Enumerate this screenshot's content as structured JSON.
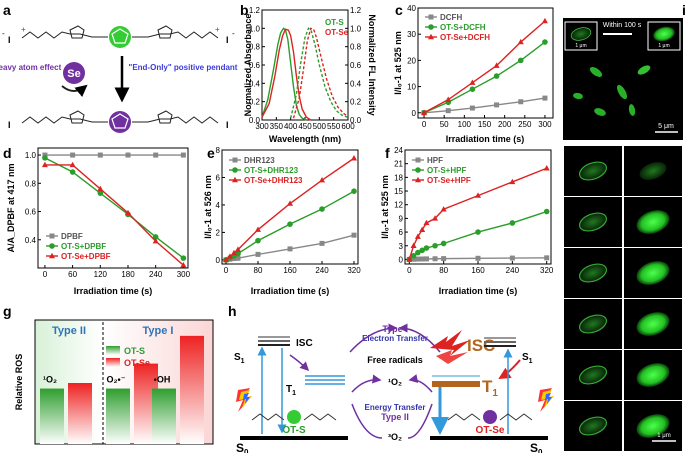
{
  "figure": {
    "panel_letters": [
      "a",
      "b",
      "c",
      "d",
      "e",
      "f",
      "g",
      "h",
      "i"
    ]
  },
  "panel_a": {
    "heavy_atom": "Heavy atom effect",
    "element": "Se",
    "end_only": "\"End-Only\" positive pendant",
    "plus": "+",
    "iodide": "I",
    "minus": "-",
    "colors": {
      "thiophene": "#33cc33",
      "selenophene": "#7030a0",
      "arrow_left": "#3b3bd9",
      "arrow_right": "#3b3bd9"
    }
  },
  "chart_data": [
    {
      "id": "b",
      "type": "line",
      "xlabel": "Wavelength (nm)",
      "ylabel": "Normalized Absorbance",
      "y2label": "Normalized FL Intensity",
      "xlim": [
        300,
        600
      ],
      "ylim": [
        0,
        1.2
      ],
      "xticks": [
        300,
        350,
        400,
        450,
        500,
        550,
        600
      ],
      "yticks": [
        0,
        0.2,
        0.4,
        0.6,
        0.8,
        1.0,
        1.2
      ],
      "ytick_labels": [
        "0.0",
        "0.2",
        "0.4",
        "0.6",
        "0.8",
        "1.0",
        "1.2"
      ],
      "legend": [
        "OT-S",
        "OT-Se"
      ],
      "series": [
        {
          "name": "OT-S abs",
          "color": "#2a9d2a",
          "dash": false,
          "x": [
            300,
            320,
            340,
            355,
            365,
            375,
            382,
            390,
            400,
            410,
            420,
            430,
            440,
            455
          ],
          "y": [
            0.03,
            0.22,
            0.55,
            0.82,
            0.95,
            1.0,
            0.98,
            0.88,
            0.62,
            0.36,
            0.16,
            0.06,
            0.02,
            0.0
          ]
        },
        {
          "name": "OT-Se abs",
          "color": "#dd2222",
          "dash": false,
          "x": [
            300,
            325,
            345,
            360,
            372,
            382,
            392,
            400,
            410,
            420,
            430,
            440,
            455,
            470
          ],
          "y": [
            0.03,
            0.18,
            0.48,
            0.76,
            0.92,
            0.99,
            0.98,
            0.92,
            0.74,
            0.48,
            0.26,
            0.12,
            0.03,
            0.0
          ]
        },
        {
          "name": "OT-S FL",
          "color": "#2a9d2a",
          "dash": true,
          "x": [
            400,
            420,
            435,
            450,
            462,
            472,
            485,
            500,
            520,
            540,
            560,
            580,
            600
          ],
          "y": [
            0.02,
            0.28,
            0.62,
            0.9,
            1.0,
            0.97,
            0.82,
            0.6,
            0.36,
            0.2,
            0.1,
            0.05,
            0.03
          ]
        },
        {
          "name": "OT-Se FL",
          "color": "#dd2222",
          "dash": true,
          "x": [
            410,
            430,
            445,
            458,
            470,
            480,
            490,
            505,
            525,
            545,
            565,
            585,
            600
          ],
          "y": [
            0.02,
            0.24,
            0.56,
            0.86,
            1.0,
            0.99,
            0.9,
            0.7,
            0.45,
            0.26,
            0.14,
            0.07,
            0.04
          ]
        }
      ]
    },
    {
      "id": "c",
      "type": "line",
      "xlabel": "Irradiation time (s)",
      "ylabel": "I/I₀-1 at 525 nm",
      "xlim": [
        -15,
        320
      ],
      "ylim": [
        -2,
        40
      ],
      "xticks": [
        0,
        50,
        100,
        150,
        200,
        250,
        300
      ],
      "yticks": [
        0,
        10,
        20,
        30,
        40
      ],
      "legend_placement": "top-left",
      "series": [
        {
          "name": "DCFH",
          "color": "#888888",
          "marker": "square",
          "x": [
            0,
            60,
            120,
            180,
            240,
            300
          ],
          "y": [
            0,
            0.8,
            1.8,
            3.0,
            4.2,
            5.6
          ]
        },
        {
          "name": "OT-S+DCFH",
          "color": "#2a9d2a",
          "marker": "circle",
          "x": [
            0,
            60,
            120,
            180,
            240,
            300
          ],
          "y": [
            0,
            4.0,
            9.0,
            14.0,
            20.0,
            27.0
          ]
        },
        {
          "name": "OT-Se+DCFH",
          "color": "#dd2222",
          "marker": "triangle",
          "x": [
            0,
            60,
            120,
            180,
            240,
            300
          ],
          "y": [
            0,
            5.0,
            11.5,
            18.0,
            27.0,
            35.0
          ]
        }
      ]
    },
    {
      "id": "d",
      "type": "line",
      "xlabel": "Irradiation time (s)",
      "ylabel": "A/A_DPBF at 417 nm",
      "xlim": [
        -15,
        310
      ],
      "ylim": [
        0.2,
        1.05
      ],
      "xticks": [
        0,
        60,
        120,
        180,
        240,
        300
      ],
      "yticks": [
        0.4,
        0.6,
        0.8,
        1.0
      ],
      "ytick_labels": [
        "0.4",
        "0.6",
        "0.8",
        "1.0"
      ],
      "legend_placement": "bottom-left",
      "series": [
        {
          "name": "DPBF",
          "color": "#888888",
          "marker": "square",
          "x": [
            0,
            60,
            120,
            180,
            240,
            300
          ],
          "y": [
            1.0,
            1.0,
            1.0,
            1.0,
            1.0,
            1.0
          ]
        },
        {
          "name": "OT-S+DPBF",
          "color": "#2a9d2a",
          "marker": "circle",
          "x": [
            0,
            60,
            120,
            180,
            240,
            300
          ],
          "y": [
            0.98,
            0.88,
            0.73,
            0.58,
            0.42,
            0.27
          ]
        },
        {
          "name": "OT-Se+DPBF",
          "color": "#dd2222",
          "marker": "triangle",
          "x": [
            0,
            60,
            120,
            180,
            240,
            300
          ],
          "y": [
            0.93,
            0.93,
            0.76,
            0.59,
            0.39,
            0.22
          ]
        }
      ]
    },
    {
      "id": "e",
      "type": "line",
      "xlabel": "Irradiation time (s)",
      "ylabel": "I/I₀-1 at 526 nm",
      "xlim": [
        -10,
        330
      ],
      "ylim": [
        -0.3,
        8
      ],
      "xticks": [
        0,
        80,
        160,
        240,
        320
      ],
      "yticks": [
        0,
        2,
        4,
        6,
        8
      ],
      "legend_placement": "top-left",
      "series": [
        {
          "name": "DHR123",
          "color": "#888888",
          "marker": "square",
          "x": [
            0,
            10,
            20,
            30,
            80,
            160,
            240,
            320
          ],
          "y": [
            0,
            0.05,
            0.1,
            0.12,
            0.4,
            0.8,
            1.2,
            1.8
          ]
        },
        {
          "name": "OT-S+DHR123",
          "color": "#2a9d2a",
          "marker": "circle",
          "x": [
            0,
            10,
            20,
            30,
            80,
            160,
            240,
            320
          ],
          "y": [
            0,
            0.15,
            0.3,
            0.45,
            1.4,
            2.6,
            3.7,
            5.0
          ]
        },
        {
          "name": "OT-Se+DHR123",
          "color": "#dd2222",
          "marker": "triangle",
          "x": [
            0,
            10,
            20,
            30,
            80,
            160,
            240,
            320
          ],
          "y": [
            0,
            0.25,
            0.5,
            0.75,
            2.2,
            4.1,
            5.8,
            7.4
          ]
        }
      ]
    },
    {
      "id": "f",
      "type": "line",
      "xlabel": "Irradiation time (s)",
      "ylabel": "I/I₀-1 at 525 nm",
      "xlim": [
        -10,
        330
      ],
      "ylim": [
        -1,
        24
      ],
      "xticks": [
        0,
        80,
        160,
        240,
        320
      ],
      "yticks": [
        0,
        3,
        6,
        9,
        12,
        15,
        18,
        21,
        24
      ],
      "legend_placement": "top-left",
      "series": [
        {
          "name": "HPF",
          "color": "#888888",
          "marker": "square",
          "x": [
            0,
            10,
            20,
            30,
            40,
            60,
            80,
            160,
            240,
            320
          ],
          "y": [
            0,
            0.05,
            0.08,
            0.1,
            0.12,
            0.15,
            0.18,
            0.25,
            0.3,
            0.35
          ]
        },
        {
          "name": "OT-S+HPF",
          "color": "#2a9d2a",
          "marker": "circle",
          "x": [
            0,
            10,
            20,
            30,
            40,
            60,
            80,
            160,
            240,
            320
          ],
          "y": [
            0,
            0.8,
            1.5,
            2.0,
            2.5,
            3.0,
            3.5,
            6.0,
            8.0,
            10.5
          ]
        },
        {
          "name": "OT-Se+HPF",
          "color": "#dd2222",
          "marker": "triangle",
          "x": [
            0,
            10,
            20,
            30,
            40,
            60,
            80,
            160,
            240,
            320
          ],
          "y": [
            0,
            3.0,
            5.0,
            6.5,
            8.0,
            9.0,
            11.0,
            14.0,
            17.0,
            20.0
          ]
        }
      ]
    },
    {
      "id": "g",
      "type": "bar",
      "ylabel": "Relative ROS",
      "categories": [
        "¹O₂",
        "O₂•⁻",
        "•OH"
      ],
      "group_labels": [
        "Type II",
        "Type I"
      ],
      "ylim": [
        0,
        2.2
      ],
      "series": [
        {
          "name": "OT-S",
          "color": "#2a9d2a",
          "values": [
            1.0,
            1.0,
            1.0
          ]
        },
        {
          "name": "OT-Se",
          "color": "#ee2222",
          "values": [
            1.1,
            1.45,
            1.95
          ]
        }
      ]
    }
  ],
  "panel_h": {
    "isc_left": "ISC",
    "isc_right": "ISC",
    "s1": "S",
    "t1": "T",
    "s0": "S",
    "sub_1": "1",
    "sub_0": "0",
    "free_radicals": "Free radicals",
    "type_i": "Type I",
    "electron_transfer": "Electron Transfer",
    "energy_transfer": "Energy Transfer",
    "type_ii": "Type II",
    "o2_singlet": "¹O₂",
    "o2_triplet": "³O₂",
    "mol_left": "OT-S",
    "mol_right": "OT-Se"
  },
  "panel_i": {
    "within": "Within 100 s",
    "scale_1um": "1 μm",
    "scale_5um": "5 μm"
  }
}
